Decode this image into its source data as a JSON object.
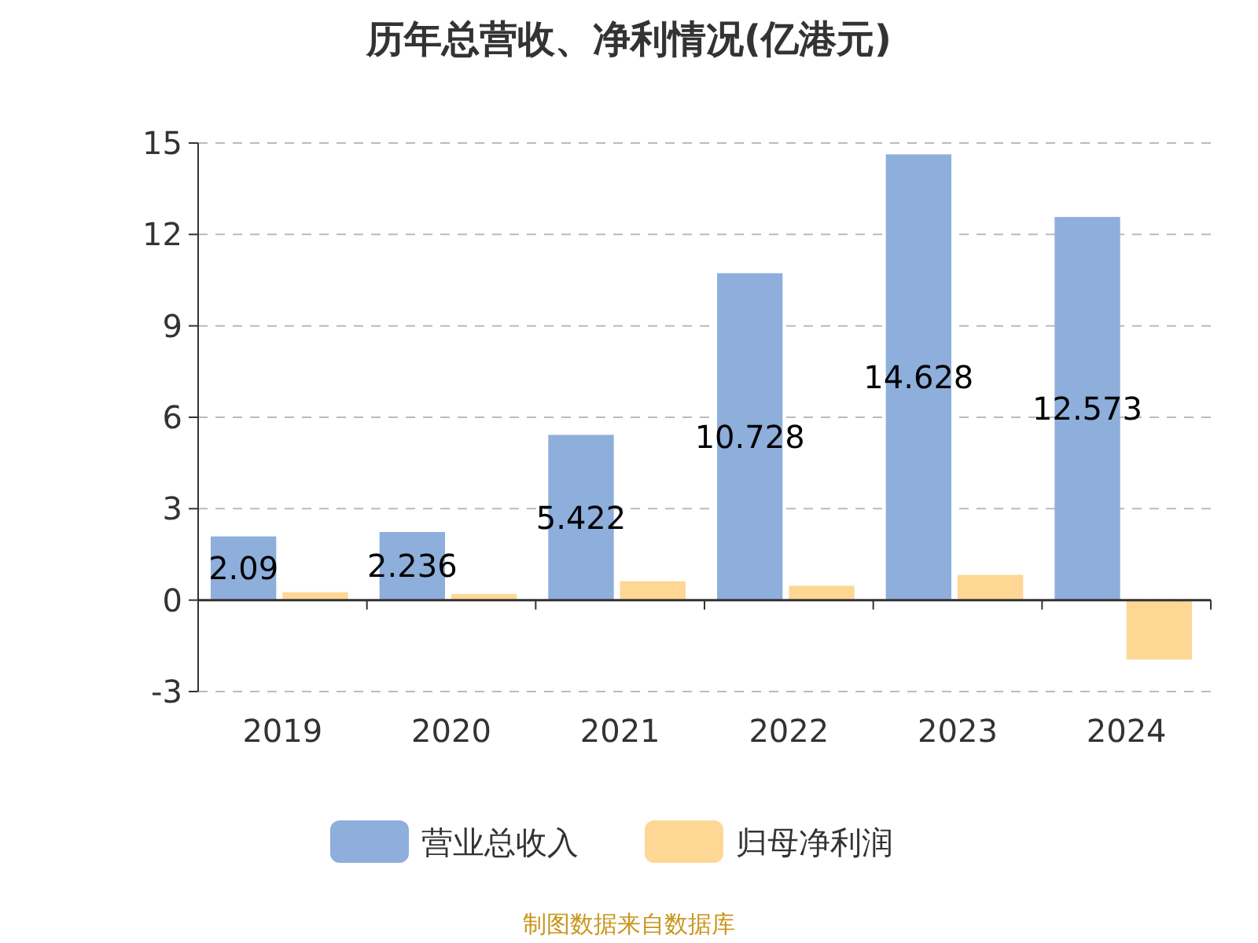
{
  "chart_data": {
    "type": "bar",
    "title": "历年总营收、净利情况(亿港元)",
    "categories": [
      "2019",
      "2020",
      "2021",
      "2022",
      "2023",
      "2024"
    ],
    "series": [
      {
        "name": "营业总收入",
        "color": "#8eaedb",
        "values": [
          2.09,
          2.236,
          5.422,
          10.728,
          14.628,
          12.573
        ],
        "value_labels": [
          "2.09",
          "2.236",
          "5.422",
          "10.728",
          "14.628",
          "12.573"
        ]
      },
      {
        "name": "归母净利润",
        "color": "#fed795",
        "values": [
          0.26,
          0.2,
          0.62,
          0.47,
          0.83,
          -1.95
        ]
      }
    ],
    "ylim": [
      -3,
      15
    ],
    "yticks": [
      -3,
      0,
      3,
      6,
      9,
      12,
      15
    ],
    "grid": "y",
    "legend": "bottom",
    "annotations": [
      "制图数据来自数据库"
    ]
  }
}
